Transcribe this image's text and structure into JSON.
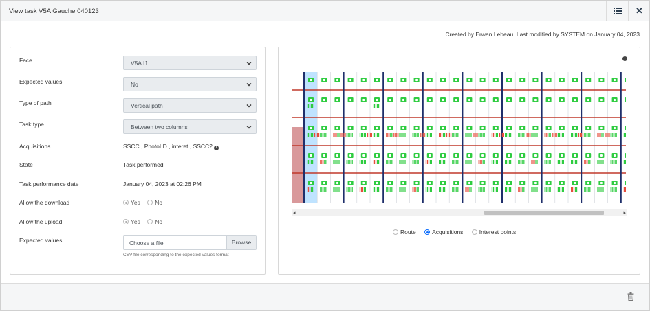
{
  "header": {
    "title": "View task V5A Gauche 040123",
    "list_icon": "list-icon",
    "close_icon": "close-icon"
  },
  "meta_text": "Created by Erwan Lebeau. Last modified by SYSTEM on January 04, 2023",
  "form": {
    "face_label": "Face",
    "face_value": "V5A I1",
    "expected_label": "Expected values",
    "expected_value": "No",
    "path_label": "Type of path",
    "path_value": "Vertical path",
    "tasktype_label": "Task type",
    "tasktype_value": "Between two columns",
    "acq_label": "Acquisitions",
    "acq_value": "SSCC , PhotoLD , interet , SSCC2",
    "state_label": "State",
    "state_value": "Task performed",
    "date_label": "Task performance date",
    "date_value": "January 04, 2023 at 02:26 PM",
    "download_label": "Allow the download",
    "upload_label": "Allow the upload",
    "yes": "Yes",
    "no": "No",
    "file_label": "Expected values",
    "file_placeholder": "Choose a file",
    "browse": "Browse",
    "file_help": "CSV file corresponding to the expected values format"
  },
  "legend": {
    "route": "Route",
    "acquisitions": "Acquisitions",
    "interest": "Interest points",
    "selected": "acquisitions"
  },
  "colors": {
    "accent": "#0d6efd",
    "camera": "#2ecc40",
    "shelf": "#c0392b",
    "column": "#1f2f6b",
    "selected_col": "#bfe3ff",
    "empty_col": "#d9999b"
  }
}
